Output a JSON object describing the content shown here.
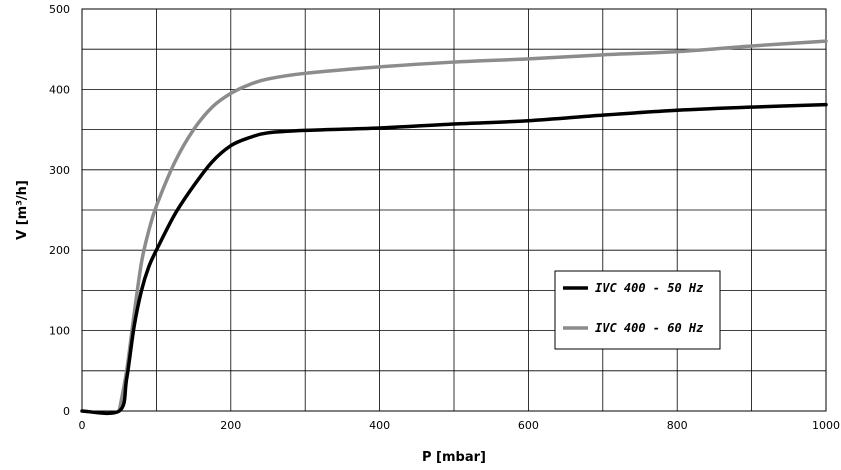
{
  "chart_data": {
    "type": "line",
    "title": "",
    "xlabel": "P [mbar]",
    "ylabel": "V [m³/h]",
    "xlim": [
      0,
      1000
    ],
    "ylim": [
      0,
      500
    ],
    "x_ticks": [
      "0",
      "200",
      "400",
      "600",
      "800",
      "1000"
    ],
    "y_ticks": [
      "0",
      "100",
      "200",
      "300",
      "400",
      "500"
    ],
    "x_grid_step": 100,
    "y_grid_step": 50,
    "grid": true,
    "legend_position": "right",
    "series": [
      {
        "name": "IVC 400 - 50 Hz",
        "color": "#000000",
        "x": [
          0,
          50,
          60,
          70,
          80,
          90,
          100,
          125,
          150,
          175,
          200,
          225,
          250,
          300,
          400,
          500,
          600,
          700,
          800,
          900,
          1000
        ],
        "y": [
          0,
          0,
          40,
          105,
          150,
          180,
          200,
          245,
          280,
          310,
          330,
          340,
          346,
          349,
          352,
          357,
          361,
          368,
          374,
          378,
          381
        ]
      },
      {
        "name": "IVC 400 - 60 Hz",
        "color": "#8c8c8c",
        "x": [
          50,
          60,
          70,
          80,
          90,
          100,
          125,
          150,
          175,
          200,
          225,
          250,
          300,
          400,
          500,
          600,
          700,
          800,
          900,
          1000
        ],
        "y": [
          0,
          50,
          120,
          185,
          225,
          255,
          310,
          350,
          378,
          395,
          406,
          413,
          420,
          428,
          434,
          438,
          443,
          447,
          454,
          460
        ]
      }
    ]
  }
}
